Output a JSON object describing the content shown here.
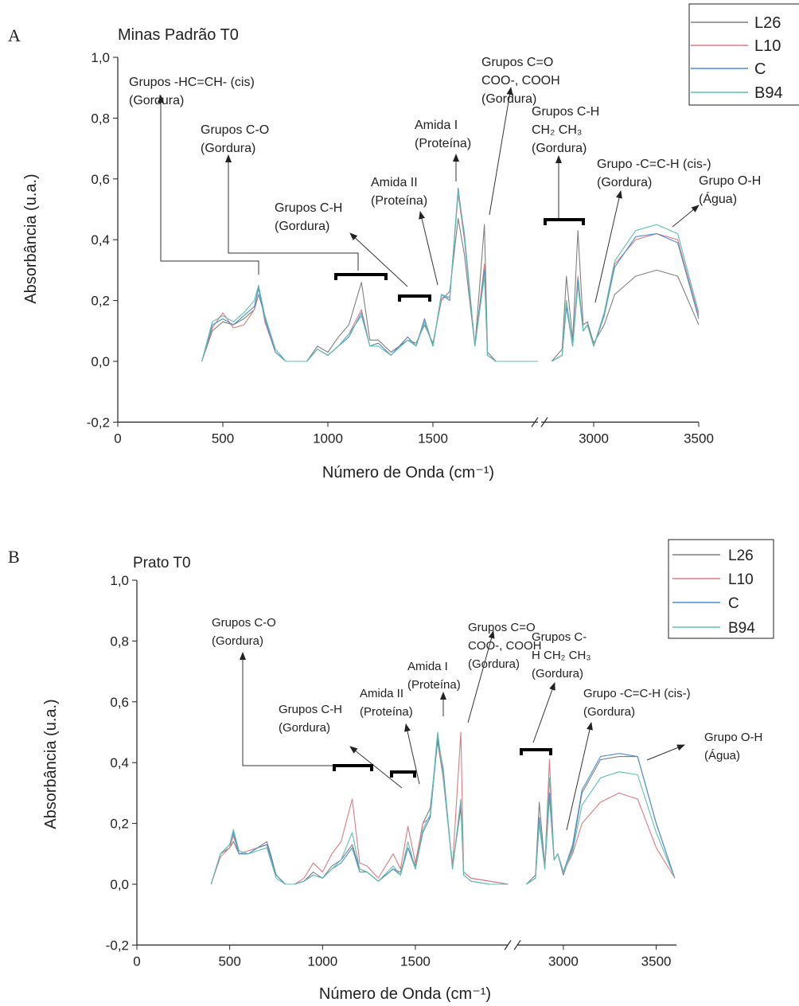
{
  "chart_data": [
    {
      "type": "line",
      "panel": "A",
      "title": "Minas Padrão T0",
      "x_label": "Número de Onda (cm⁻¹)",
      "y_label": "Absorbância (u.a.)",
      "x": [
        400,
        450,
        500,
        550,
        600,
        650,
        670,
        700,
        750,
        800,
        900,
        950,
        1000,
        1050,
        1100,
        1160,
        1200,
        1240,
        1300,
        1380,
        1420,
        1460,
        1500,
        1540,
        1580,
        1620,
        1650,
        1700,
        1745,
        1760,
        1800,
        1900,
        2000,
        2800,
        2850,
        2870,
        2900,
        2925,
        2950,
        2970,
        3000,
        3050,
        3100,
        3200,
        3300,
        3400,
        3500
      ],
      "series": [
        {
          "name": "L26",
          "color": "#7f7f7f",
          "values": [
            0.0,
            0.1,
            0.13,
            0.12,
            0.14,
            0.17,
            0.22,
            0.15,
            0.04,
            0.0,
            0.0,
            0.05,
            0.03,
            0.08,
            0.12,
            0.26,
            0.07,
            0.07,
            0.03,
            0.07,
            0.06,
            0.12,
            0.06,
            0.2,
            0.23,
            0.47,
            0.35,
            0.05,
            0.45,
            0.03,
            0.0,
            0.0,
            0.0,
            0.0,
            0.04,
            0.28,
            0.07,
            0.43,
            0.12,
            0.13,
            0.06,
            0.12,
            0.22,
            0.28,
            0.3,
            0.28,
            0.12
          ]
        },
        {
          "name": "L10",
          "color": "#e07a80",
          "values": [
            0.0,
            0.11,
            0.16,
            0.11,
            0.12,
            0.17,
            0.25,
            0.13,
            0.03,
            0.0,
            0.0,
            0.04,
            0.02,
            0.05,
            0.09,
            0.17,
            0.05,
            0.06,
            0.02,
            0.08,
            0.05,
            0.14,
            0.05,
            0.21,
            0.21,
            0.55,
            0.4,
            0.05,
            0.32,
            0.02,
            0.0,
            0.0,
            0.0,
            0.0,
            0.02,
            0.2,
            0.05,
            0.28,
            0.1,
            0.12,
            0.05,
            0.15,
            0.32,
            0.4,
            0.42,
            0.4,
            0.15
          ]
        },
        {
          "name": "C",
          "color": "#4a8fd0",
          "values": [
            0.0,
            0.12,
            0.14,
            0.12,
            0.15,
            0.18,
            0.24,
            0.14,
            0.03,
            0.0,
            0.0,
            0.04,
            0.02,
            0.05,
            0.08,
            0.16,
            0.05,
            0.06,
            0.02,
            0.08,
            0.05,
            0.14,
            0.05,
            0.22,
            0.2,
            0.57,
            0.41,
            0.05,
            0.3,
            0.02,
            0.0,
            0.0,
            0.0,
            0.0,
            0.02,
            0.18,
            0.05,
            0.27,
            0.1,
            0.12,
            0.05,
            0.15,
            0.31,
            0.41,
            0.42,
            0.39,
            0.14
          ]
        },
        {
          "name": "B94",
          "color": "#5dbfb0",
          "values": [
            0.0,
            0.13,
            0.15,
            0.13,
            0.16,
            0.2,
            0.25,
            0.15,
            0.04,
            0.0,
            0.0,
            0.04,
            0.02,
            0.05,
            0.09,
            0.15,
            0.05,
            0.05,
            0.02,
            0.07,
            0.05,
            0.13,
            0.05,
            0.22,
            0.21,
            0.56,
            0.42,
            0.05,
            0.28,
            0.02,
            0.0,
            0.0,
            0.0,
            0.0,
            0.02,
            0.2,
            0.05,
            0.25,
            0.1,
            0.12,
            0.05,
            0.16,
            0.33,
            0.43,
            0.45,
            0.42,
            0.16
          ]
        }
      ],
      "xlim": [
        0,
        3500
      ],
      "x_break": [
        2000,
        2750
      ],
      "xticks": [
        0,
        500,
        1000,
        1500,
        3000,
        3500
      ],
      "ylim": [
        -0.2,
        1.0
      ],
      "yticks": [
        {
          "value": -0.2,
          "label": "-0,2"
        },
        {
          "value": 0,
          "label": "0,0"
        },
        {
          "value": 0.2,
          "label": "0,2"
        },
        {
          "value": 0.4,
          "label": "0,4"
        },
        {
          "value": 0.6,
          "label": "0,6"
        },
        {
          "value": 0.8,
          "label": "0,8"
        },
        {
          "value": 1.0,
          "label": "1,0"
        }
      ],
      "legend": "top-right",
      "annotations": [
        {
          "lines": [
            "Grupos -HC=CH- (cis)",
            "(Gordura)"
          ]
        },
        {
          "lines": [
            "Grupos C-O",
            "(Gordura)"
          ]
        },
        {
          "lines": [
            "Grupos C-H",
            "(Gordura)"
          ]
        },
        {
          "lines": [
            "Amida II",
            "(Proteína)"
          ]
        },
        {
          "lines": [
            "Amida I",
            "(Proteína)"
          ]
        },
        {
          "lines": [
            "Grupos C=O",
            "COO-, COOH",
            "(Gordura)"
          ]
        },
        {
          "lines": [
            "Grupos C-H",
            "CH₂ CH₃",
            "(Gordura)"
          ]
        },
        {
          "lines": [
            "Grupo -C=C-H (cis-)",
            "(Gordura)"
          ]
        },
        {
          "lines": [
            "Grupo O-H",
            "(Água)"
          ]
        }
      ]
    },
    {
      "type": "line",
      "panel": "B",
      "title": "Prato T0",
      "x_label": "Número de Onda (cm⁻¹)",
      "y_label": "Absorbância (u.a.)",
      "x": [
        400,
        450,
        500,
        520,
        550,
        600,
        650,
        700,
        720,
        750,
        800,
        850,
        900,
        950,
        1000,
        1050,
        1100,
        1160,
        1200,
        1240,
        1300,
        1380,
        1420,
        1460,
        1500,
        1540,
        1580,
        1620,
        1650,
        1700,
        1745,
        1760,
        1800,
        1900,
        2000,
        2800,
        2850,
        2870,
        2900,
        2925,
        2950,
        2970,
        3000,
        3050,
        3100,
        3200,
        3300,
        3400,
        3500,
        3600
      ],
      "series": [
        {
          "name": "L26",
          "color": "#7f7f7f",
          "values": [
            0.0,
            0.1,
            0.12,
            0.14,
            0.1,
            0.1,
            0.12,
            0.14,
            0.1,
            0.03,
            0.0,
            0.0,
            0.01,
            0.04,
            0.02,
            0.06,
            0.08,
            0.13,
            0.05,
            0.04,
            0.01,
            0.05,
            0.04,
            0.12,
            0.06,
            0.2,
            0.25,
            0.47,
            0.35,
            0.06,
            0.25,
            0.04,
            0.02,
            0.01,
            0.0,
            0.0,
            0.03,
            0.27,
            0.06,
            0.29,
            0.08,
            0.1,
            0.03,
            0.12,
            0.3,
            0.41,
            0.42,
            0.42,
            0.2,
            0.02
          ]
        },
        {
          "name": "L10",
          "color": "#e07a80",
          "values": [
            0.0,
            0.09,
            0.12,
            0.16,
            0.1,
            0.11,
            0.12,
            0.13,
            0.09,
            0.03,
            0.0,
            0.0,
            0.02,
            0.07,
            0.04,
            0.1,
            0.14,
            0.28,
            0.07,
            0.06,
            0.02,
            0.1,
            0.05,
            0.19,
            0.07,
            0.2,
            0.22,
            0.49,
            0.35,
            0.06,
            0.5,
            0.04,
            0.02,
            0.01,
            0.0,
            0.0,
            0.02,
            0.2,
            0.06,
            0.41,
            0.08,
            0.1,
            0.04,
            0.1,
            0.2,
            0.27,
            0.3,
            0.28,
            0.12,
            0.02
          ]
        },
        {
          "name": "C",
          "color": "#4a8fd0",
          "values": [
            0.0,
            0.1,
            0.13,
            0.17,
            0.1,
            0.1,
            0.12,
            0.13,
            0.09,
            0.03,
            0.0,
            0.0,
            0.01,
            0.03,
            0.02,
            0.05,
            0.07,
            0.12,
            0.04,
            0.04,
            0.01,
            0.05,
            0.03,
            0.12,
            0.05,
            0.17,
            0.22,
            0.48,
            0.38,
            0.05,
            0.27,
            0.03,
            0.01,
            0.0,
            0.0,
            0.0,
            0.02,
            0.22,
            0.05,
            0.3,
            0.08,
            0.1,
            0.04,
            0.13,
            0.31,
            0.42,
            0.43,
            0.42,
            0.2,
            0.02
          ]
        },
        {
          "name": "B94",
          "color": "#5dbfb0",
          "values": [
            0.0,
            0.1,
            0.13,
            0.18,
            0.11,
            0.1,
            0.11,
            0.12,
            0.08,
            0.02,
            0.0,
            0.0,
            0.01,
            0.03,
            0.02,
            0.05,
            0.08,
            0.17,
            0.05,
            0.04,
            0.01,
            0.06,
            0.03,
            0.14,
            0.05,
            0.18,
            0.23,
            0.5,
            0.36,
            0.05,
            0.28,
            0.03,
            0.01,
            0.0,
            0.0,
            0.0,
            0.02,
            0.2,
            0.05,
            0.35,
            0.08,
            0.1,
            0.04,
            0.11,
            0.26,
            0.35,
            0.37,
            0.36,
            0.17,
            0.02
          ]
        }
      ],
      "xlim": [
        0,
        3600
      ],
      "x_break": [
        2000,
        2750
      ],
      "xticks": [
        0,
        500,
        1000,
        1500,
        3000,
        3500
      ],
      "ylim": [
        -0.2,
        1.0
      ],
      "yticks": [
        {
          "value": -0.2,
          "label": "-0,2"
        },
        {
          "value": 0,
          "label": "0,0"
        },
        {
          "value": 0.2,
          "label": "0,2"
        },
        {
          "value": 0.4,
          "label": "0,4"
        },
        {
          "value": 0.6,
          "label": "0,6"
        },
        {
          "value": 0.8,
          "label": "0,8"
        },
        {
          "value": 1.0,
          "label": "1,0"
        }
      ],
      "legend": "top-right",
      "annotations": [
        {
          "lines": [
            "Grupos C-O",
            "(Gordura)"
          ]
        },
        {
          "lines": [
            "Grupos C-H",
            "(Gordura)"
          ]
        },
        {
          "lines": [
            "Amida II",
            "(Proteína)"
          ]
        },
        {
          "lines": [
            "Amida I",
            "(Proteína)"
          ]
        },
        {
          "lines": [
            "Grupos C=O",
            "COO-, COOH",
            "(Gordura)"
          ]
        },
        {
          "lines": [
            "Grupos C-",
            "H CH₂ CH₃",
            "(Gordura)"
          ]
        },
        {
          "lines": [
            "Grupo -C=C-H (cis-)",
            "(Gordura)"
          ]
        },
        {
          "lines": [
            "Grupo O-H",
            "(Água)"
          ]
        }
      ]
    }
  ]
}
